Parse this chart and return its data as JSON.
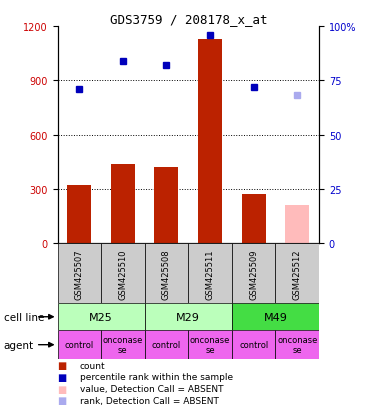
{
  "title": "GDS3759 / 208178_x_at",
  "samples": [
    "GSM425507",
    "GSM425510",
    "GSM425508",
    "GSM425511",
    "GSM425509",
    "GSM425512"
  ],
  "bar_values": [
    320,
    440,
    420,
    1130,
    270,
    null
  ],
  "bar_absent": [
    null,
    null,
    null,
    null,
    null,
    210
  ],
  "rank_values": [
    71,
    84,
    82,
    96,
    72,
    null
  ],
  "rank_absent": [
    null,
    null,
    null,
    null,
    null,
    68
  ],
  "cell_line_groups": [
    [
      0,
      1,
      "M25",
      "#bbffbb"
    ],
    [
      2,
      3,
      "M29",
      "#bbffbb"
    ],
    [
      4,
      5,
      "M49",
      "#44dd44"
    ]
  ],
  "agent_labels": [
    "control",
    "onconase\nse",
    "control",
    "onconase\nse",
    "control",
    "onconase\nse"
  ],
  "agent_color": "#ee66ee",
  "left_ylim": [
    0,
    1200
  ],
  "right_ylim": [
    0,
    100
  ],
  "left_yticks": [
    0,
    300,
    600,
    900,
    1200
  ],
  "right_yticks": [
    0,
    25,
    50,
    75,
    100
  ],
  "right_yticklabels": [
    "0",
    "25",
    "50",
    "75",
    "100%"
  ],
  "absent_bar_color": "#ffbbbb",
  "absent_rank_color": "#aaaaee",
  "rank_dot_color": "#0000bb",
  "bar_color": "#bb2200",
  "sample_box_color": "#cccccc",
  "legend_items": [
    [
      "#bb2200",
      "count"
    ],
    [
      "#0000bb",
      "percentile rank within the sample"
    ],
    [
      "#ffbbbb",
      "value, Detection Call = ABSENT"
    ],
    [
      "#aaaaee",
      "rank, Detection Call = ABSENT"
    ]
  ]
}
